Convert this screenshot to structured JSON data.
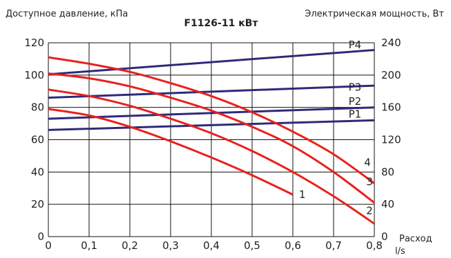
{
  "chart_data": {
    "type": "line",
    "title": "F1126-11 кВт",
    "ylabel": "Доступное давление, кПа",
    "y2label": "Электрическая мощность, Вт",
    "xlabel": "Расход",
    "xunit": "l/s",
    "xlim": [
      0,
      0.8
    ],
    "ylim": [
      0,
      120
    ],
    "y2lim": [
      0,
      240
    ],
    "xticks": [
      "0",
      "0,1",
      "0,2",
      "0,3",
      "0,4",
      "0,5",
      "0,6",
      "0,7",
      "0,8"
    ],
    "yticks": [
      "0",
      "20",
      "40",
      "60",
      "80",
      "100",
      "120"
    ],
    "y2ticks": [
      "0",
      "40",
      "80",
      "120",
      "160",
      "200",
      "240"
    ],
    "grid": true,
    "pressure_series": [
      {
        "label": "1",
        "color": "#e8211c",
        "x": [
          0,
          0.1,
          0.2,
          0.3,
          0.4,
          0.5,
          0.6
        ],
        "y": [
          79,
          75,
          68,
          59,
          49,
          38,
          26
        ]
      },
      {
        "label": "2",
        "color": "#e8211c",
        "x": [
          0,
          0.1,
          0.2,
          0.3,
          0.4,
          0.5,
          0.6,
          0.7,
          0.8
        ],
        "y": [
          91,
          87,
          81,
          73,
          64,
          53,
          40,
          25,
          8
        ]
      },
      {
        "label": "3",
        "color": "#e8211c",
        "x": [
          0,
          0.1,
          0.2,
          0.3,
          0.4,
          0.5,
          0.6,
          0.7,
          0.8
        ],
        "y": [
          101,
          98,
          93,
          86,
          78,
          68,
          56,
          40,
          21
        ]
      },
      {
        "label": "4",
        "color": "#e8211c",
        "x": [
          0,
          0.1,
          0.2,
          0.3,
          0.4,
          0.5,
          0.6,
          0.7,
          0.8
        ],
        "y": [
          111,
          107,
          102,
          95,
          87,
          77,
          65,
          51,
          33
        ]
      }
    ],
    "power_series": [
      {
        "label": "P1",
        "color": "#2d2a7a",
        "x": [
          0,
          0.8
        ],
        "y": [
          132,
          144
        ]
      },
      {
        "label": "P2",
        "color": "#2d2a7a",
        "x": [
          0,
          0.8
        ],
        "y": [
          146,
          160
        ]
      },
      {
        "label": "P3",
        "color": "#2d2a7a",
        "x": [
          0,
          0.8
        ],
        "y": [
          172,
          187
        ]
      },
      {
        "label": "P4",
        "color": "#2d2a7a",
        "x": [
          0,
          0.8
        ],
        "y": [
          201,
          231
        ]
      }
    ]
  }
}
